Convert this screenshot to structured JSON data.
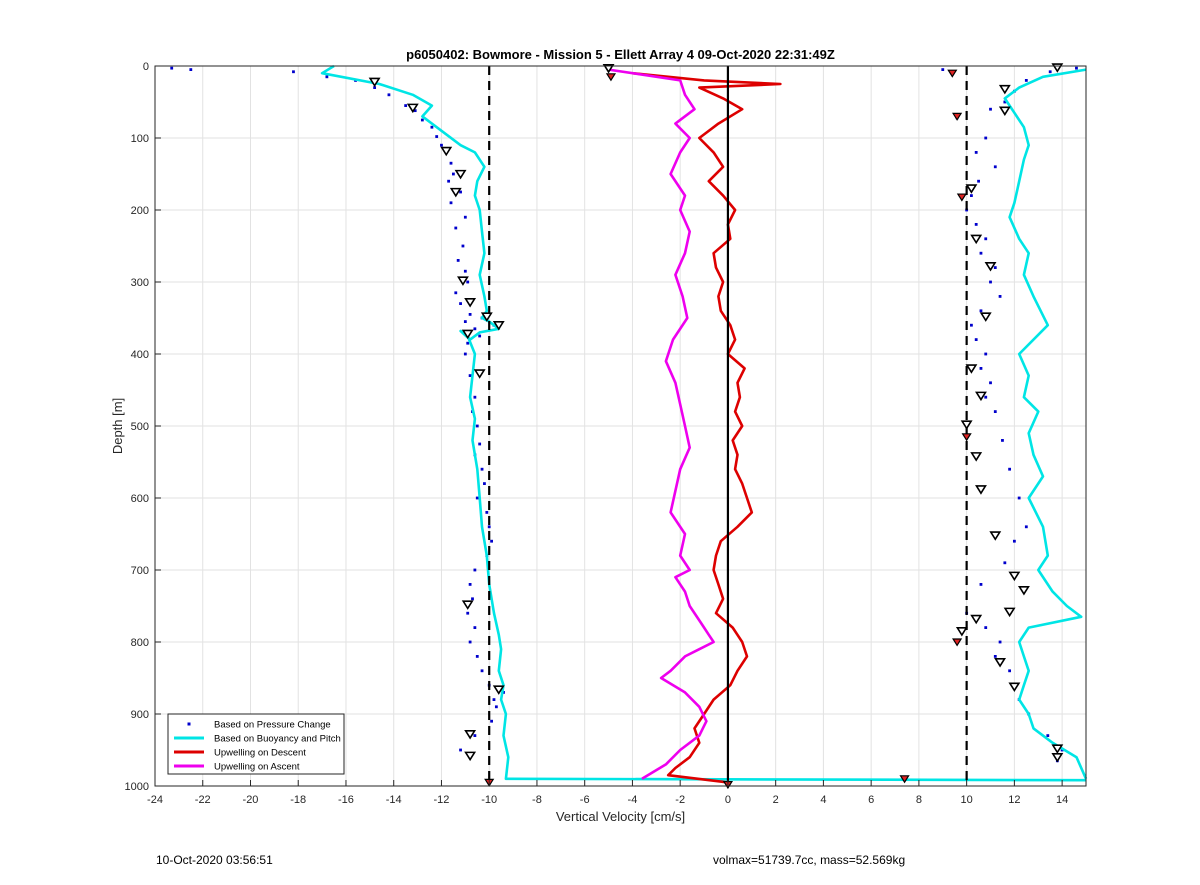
{
  "chart_data": {
    "type": "scatter",
    "title": "p6050402: Bowmore - Mission 5 - Ellett Array 4 09-Oct-2020 22:31:49Z",
    "xlabel": "Vertical Velocity [cm/s]",
    "ylabel": "Depth [m]",
    "xlim": [
      -24,
      15
    ],
    "ylim": [
      1000,
      0
    ],
    "y_reversed": true,
    "xticks": [
      -24,
      -22,
      -20,
      -18,
      -16,
      -14,
      -12,
      -10,
      -8,
      -6,
      -4,
      -2,
      0,
      2,
      4,
      6,
      8,
      10,
      12,
      14
    ],
    "yticks": [
      0,
      100,
      200,
      300,
      400,
      500,
      600,
      700,
      800,
      900,
      1000
    ],
    "grid": true,
    "legend_position": "bottom-left",
    "reference_lines": [
      {
        "x": -10,
        "style": "dashed",
        "color": "#000000"
      },
      {
        "x": 10,
        "style": "dashed",
        "color": "#000000"
      },
      {
        "x": 0,
        "style": "solid",
        "color": "#000000"
      }
    ],
    "series": [
      {
        "name": "Based on Pressure Change",
        "kind": "points",
        "color": "#0000cc",
        "profiles": [
          {
            "x": [
              -23.3,
              -22.5,
              -18.2,
              -16.8,
              -15.6,
              -14.8,
              -14.2,
              -13.5,
              -13.1,
              -12.8,
              -12.4,
              -12.2,
              -12.0,
              -11.8,
              -11.6,
              -11.5,
              -11.7,
              -11.2,
              -11.6,
              -11.0,
              -11.4,
              -11.1,
              -11.3,
              -11.0,
              -10.9,
              -11.4,
              -11.2,
              -10.8,
              -11.0,
              -10.6,
              -10.3,
              -9.8,
              -10.4,
              -10.9,
              -11.0,
              -10.8,
              -10.6,
              -10.7,
              -10.5,
              -10.4,
              -10.6,
              -10.3,
              -10.2,
              -10.5,
              -10.1,
              -10.0,
              -9.9,
              -10.1,
              -10.6,
              -10.8,
              -10.7,
              -10.9,
              -10.6,
              -10.8,
              -10.5,
              -10.3,
              -10.0,
              -9.8,
              -9.4,
              -9.7,
              -9.9,
              -10.6,
              -11.2,
              -10.8
            ],
            "y": [
              3,
              5,
              8,
              15,
              20,
              30,
              40,
              55,
              62,
              75,
              85,
              98,
              110,
              120,
              135,
              150,
              160,
              175,
              190,
              210,
              225,
              250,
              270,
              285,
              300,
              315,
              330,
              345,
              355,
              365,
              350,
              360,
              375,
              385,
              400,
              430,
              460,
              480,
              500,
              525,
              540,
              560,
              580,
              600,
              620,
              640,
              660,
              680,
              700,
              720,
              740,
              760,
              780,
              800,
              820,
              840,
              860,
              880,
              870,
              890,
              910,
              930,
              950,
              960
            ]
          },
          {
            "x": [
              9.0,
              13.5,
              14.6,
              12.5,
              12.0,
              11.6,
              11.0,
              9.6,
              10.8,
              10.4,
              11.2,
              10.5,
              10.2,
              10.0,
              10.4,
              10.8,
              10.6,
              11.2,
              11.0,
              11.4,
              10.6,
              10.2,
              10.4,
              10.8,
              10.6,
              11.0,
              10.8,
              11.2,
              11.5,
              11.8,
              12.2,
              12.5,
              12.0,
              11.6,
              10.6,
              10.0,
              10.8,
              11.4,
              11.2,
              11.8,
              12.0,
              12.2,
              12.6,
              13.4,
              14.0,
              13.8
            ],
            "y": [
              5,
              8,
              3,
              20,
              35,
              50,
              60,
              72,
              100,
              120,
              140,
              160,
              180,
              200,
              220,
              240,
              260,
              280,
              300,
              320,
              340,
              360,
              380,
              400,
              420,
              440,
              460,
              480,
              520,
              560,
              600,
              640,
              660,
              690,
              720,
              760,
              780,
              800,
              820,
              840,
              860,
              880,
              900,
              930,
              950,
              965
            ]
          }
        ]
      },
      {
        "name": "Based on Buoyancy and Pitch",
        "kind": "line",
        "color": "#00e5e5",
        "profiles": [
          {
            "x": [
              -16.5,
              -17.0,
              -14.6,
              -13.2,
              -12.4,
              -12.8,
              -12.0,
              -11.2,
              -10.6,
              -10.2,
              -10.5,
              -10.6,
              -10.4,
              -10.3,
              -10.2,
              -10.4,
              -10.2,
              -10.1,
              -10.3,
              -10.0,
              -9.8,
              -9.6,
              -10.4,
              -10.8,
              -11.2,
              -10.9,
              -10.6,
              -10.7,
              -10.8,
              -10.6,
              -10.7,
              -10.5,
              -10.4,
              -10.3,
              -10.1,
              -10.0,
              -9.8,
              -9.6,
              -9.5,
              -9.6,
              -9.4,
              -9.5,
              -9.3,
              -9.4,
              -9.2,
              -9.3,
              15.0
            ],
            "y": [
              0,
              10,
              25,
              40,
              55,
              70,
              90,
              110,
              120,
              140,
              160,
              180,
              200,
              230,
              260,
              290,
              320,
              340,
              350,
              355,
              360,
              365,
              370,
              380,
              368,
              375,
              400,
              430,
              460,
              490,
              520,
              560,
              600,
              640,
              680,
              720,
              760,
              790,
              810,
              840,
              860,
              880,
              900,
              930,
              960,
              990,
              992
            ]
          },
          {
            "x": [
              15.0,
              13.2,
              12.2,
              11.6,
              12.0,
              12.4,
              12.6,
              12.4,
              12.2,
              12.0,
              11.8,
              12.2,
              12.6,
              12.4,
              12.8,
              13.4,
              12.2,
              12.6,
              12.4,
              13.0,
              12.6,
              12.8,
              13.2,
              12.6,
              13.2,
              13.4,
              13.0,
              13.6,
              14.2,
              14.8,
              12.6,
              12.2,
              12.4,
              12.6,
              12.4,
              12.2,
              12.6,
              12.8,
              13.6,
              14.6,
              15.0
            ],
            "y": [
              5,
              15,
              30,
              45,
              65,
              85,
              110,
              130,
              160,
              190,
              210,
              240,
              260,
              290,
              320,
              360,
              400,
              430,
              460,
              480,
              510,
              540,
              570,
              600,
              640,
              680,
              700,
              730,
              750,
              765,
              780,
              800,
              820,
              840,
              860,
              880,
              900,
              920,
              940,
              960,
              990
            ]
          }
        ]
      },
      {
        "name": "Upwelling on Descent",
        "kind": "line",
        "color": "#dd0000",
        "profiles": [
          {
            "x": [
              -4.0,
              -1.0,
              2.2,
              -1.2,
              -0.2,
              0.6,
              -0.4,
              -1.2,
              -0.6,
              -0.2,
              -0.8,
              -0.2,
              0.3,
              0.0,
              0.1,
              -0.6,
              -0.5,
              -0.2,
              -0.4,
              -0.3,
              0.1,
              0.3,
              0.0,
              0.7,
              0.4,
              0.5,
              0.3,
              0.6,
              0.2,
              0.4,
              0.3,
              0.6,
              0.8,
              1.0,
              0.4,
              -0.3,
              -0.5,
              -0.6,
              -0.4,
              -0.2,
              -0.5,
              0.2,
              0.6,
              0.8,
              0.4,
              0.1,
              -0.6,
              -1.0,
              -1.4,
              -1.2,
              -1.6,
              -2.2,
              -2.5,
              0.0
            ],
            "y": [
              10,
              20,
              25,
              30,
              45,
              60,
              80,
              100,
              120,
              140,
              160,
              180,
              200,
              220,
              240,
              260,
              280,
              300,
              320,
              340,
              360,
              380,
              400,
              420,
              440,
              460,
              480,
              500,
              520,
              540,
              560,
              580,
              600,
              620,
              640,
              660,
              680,
              700,
              720,
              740,
              760,
              780,
              800,
              820,
              840,
              860,
              880,
              900,
              920,
              940,
              960,
              975,
              985,
              995
            ]
          }
        ]
      },
      {
        "name": "Upwelling on Ascent",
        "kind": "line",
        "color": "#ee00ee",
        "profiles": [
          {
            "x": [
              -5.0,
              -2.0,
              -1.8,
              -1.4,
              -2.2,
              -1.6,
              -2.0,
              -2.4,
              -1.8,
              -2.0,
              -1.6,
              -1.8,
              -2.2,
              -1.9,
              -1.7,
              -2.3,
              -2.6,
              -2.2,
              -2.0,
              -1.8,
              -1.6,
              -2.0,
              -2.2,
              -2.4,
              -1.8,
              -2.0,
              -1.6,
              -2.2,
              -1.8,
              -1.6,
              -1.2,
              -1.0,
              -0.8,
              -0.6,
              -1.2,
              -1.8,
              -2.4,
              -2.8,
              -1.8,
              -1.2,
              -0.9,
              -1.2,
              -2.0,
              -2.6,
              -3.6
            ],
            "y": [
              5,
              20,
              40,
              60,
              80,
              100,
              120,
              150,
              180,
              200,
              230,
              260,
              290,
              320,
              350,
              380,
              410,
              440,
              470,
              500,
              530,
              560,
              590,
              620,
              650,
              680,
              700,
              710,
              730,
              750,
              770,
              780,
              790,
              800,
              810,
              820,
              840,
              850,
              870,
              890,
              910,
              930,
              950,
              970,
              990
            ]
          }
        ]
      }
    ],
    "markers": {
      "open_triangles": [
        {
          "x": -5.0,
          "y": 3
        },
        {
          "x": -14.8,
          "y": 22
        },
        {
          "x": -13.2,
          "y": 58
        },
        {
          "x": -11.8,
          "y": 118
        },
        {
          "x": -11.2,
          "y": 150
        },
        {
          "x": -11.4,
          "y": 175
        },
        {
          "x": -11.1,
          "y": 298
        },
        {
          "x": -10.8,
          "y": 328
        },
        {
          "x": -10.1,
          "y": 348
        },
        {
          "x": -9.6,
          "y": 360
        },
        {
          "x": -10.9,
          "y": 372
        },
        {
          "x": -10.4,
          "y": 427
        },
        {
          "x": -10.9,
          "y": 748
        },
        {
          "x": -9.6,
          "y": 866
        },
        {
          "x": -10.8,
          "y": 928
        },
        {
          "x": -10.8,
          "y": 958
        },
        {
          "x": 13.8,
          "y": 2
        },
        {
          "x": 11.6,
          "y": 32
        },
        {
          "x": 11.6,
          "y": 62
        },
        {
          "x": 10.2,
          "y": 170
        },
        {
          "x": 10.4,
          "y": 240
        },
        {
          "x": 11.0,
          "y": 278
        },
        {
          "x": 10.8,
          "y": 348
        },
        {
          "x": 10.2,
          "y": 420
        },
        {
          "x": 10.6,
          "y": 458
        },
        {
          "x": 10.0,
          "y": 498
        },
        {
          "x": 10.4,
          "y": 542
        },
        {
          "x": 10.6,
          "y": 588
        },
        {
          "x": 11.2,
          "y": 652
        },
        {
          "x": 12.0,
          "y": 708
        },
        {
          "x": 12.4,
          "y": 728
        },
        {
          "x": 11.8,
          "y": 758
        },
        {
          "x": 10.4,
          "y": 768
        },
        {
          "x": 9.8,
          "y": 785
        },
        {
          "x": 11.4,
          "y": 828
        },
        {
          "x": 12.0,
          "y": 862
        },
        {
          "x": 13.8,
          "y": 948
        },
        {
          "x": 13.8,
          "y": 960
        }
      ],
      "filled_triangles": [
        {
          "x": -4.9,
          "y": 15
        },
        {
          "x": 9.4,
          "y": 10
        },
        {
          "x": 9.6,
          "y": 70
        },
        {
          "x": 9.8,
          "y": 182
        },
        {
          "x": 10.0,
          "y": 515
        },
        {
          "x": 9.6,
          "y": 800
        },
        {
          "x": 7.4,
          "y": 990
        },
        {
          "x": -10.0,
          "y": 995
        },
        {
          "x": 0.0,
          "y": 998
        }
      ]
    }
  },
  "footer": {
    "left": "10-Oct-2020 03:56:51",
    "right": "volmax=51739.7cc, mass=52.569kg"
  }
}
